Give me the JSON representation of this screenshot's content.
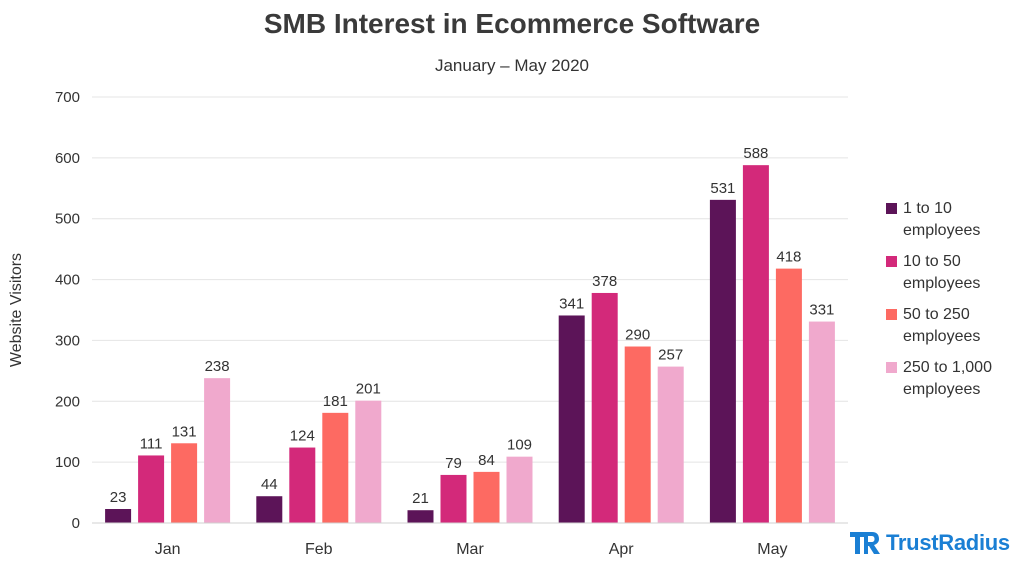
{
  "chart_data": {
    "type": "bar",
    "title": "SMB Interest in Ecommerce Software",
    "subtitle": "January – May 2020",
    "xlabel": "",
    "ylabel": "Website Visitors",
    "ylim": [
      0,
      700
    ],
    "yticks": [
      0,
      100,
      200,
      300,
      400,
      500,
      600,
      700
    ],
    "grid": true,
    "legend_position": "right",
    "categories": [
      "Jan",
      "Feb",
      "Mar",
      "Apr",
      "May"
    ],
    "series": [
      {
        "name": "1 to 10 employees",
        "color": "#5c1458",
        "values": [
          23,
          44,
          21,
          341,
          531
        ]
      },
      {
        "name": "10 to 50 employees",
        "color": "#d3297a",
        "values": [
          111,
          124,
          79,
          378,
          588
        ]
      },
      {
        "name": "50 to 250 employees",
        "color": "#fd6a62",
        "values": [
          131,
          181,
          84,
          290,
          418
        ]
      },
      {
        "name": "250 to 1,000 employees",
        "color": "#f0a9cd",
        "values": [
          238,
          201,
          109,
          257,
          331
        ]
      }
    ]
  },
  "brand": {
    "name": "TrustRadius",
    "logo_text": "TR",
    "logo_icon": "trustradius-logo-icon",
    "color": "#1a7fd4"
  }
}
